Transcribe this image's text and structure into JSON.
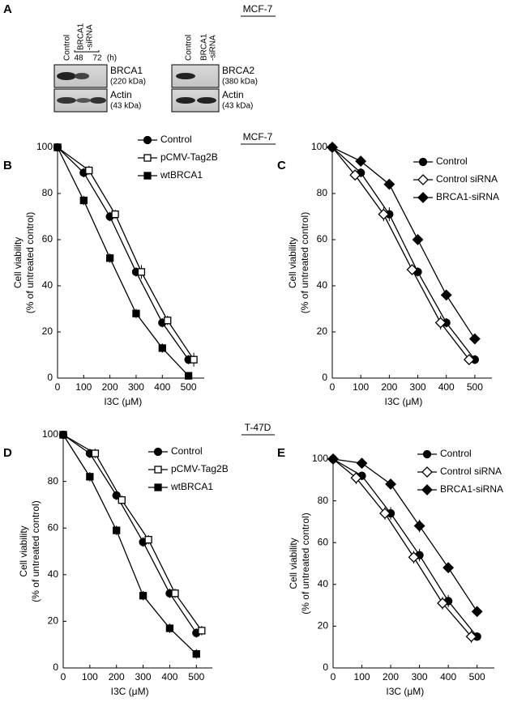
{
  "panel": "A",
  "headings": [
    "MCF-7",
    "MCF-7",
    "T-47D"
  ],
  "blots": [
    {
      "lanes": [
        "Control",
        "BRCA1",
        "-siRNA"
      ],
      "times": [
        "48",
        "72",
        "(h)"
      ],
      "rows": [
        {
          "protein": "BRCA1",
          "size": "(220 kDa)"
        },
        {
          "protein": "Actin",
          "size": "(43 kDa)"
        }
      ]
    },
    {
      "lanes": [
        "Control",
        "BRCA1",
        "-siRNA"
      ],
      "rows": [
        {
          "protein": "BRCA2",
          "size": "(380 kDa)"
        },
        {
          "protein": "Actin",
          "size": "(43 kDa)"
        }
      ]
    }
  ],
  "chart_data": [
    {
      "type": "line",
      "panel": "B",
      "xlabel": "I3C (μM)",
      "ylabel": [
        "Cell viability",
        "(% of untreated control)"
      ],
      "xlim": [
        0,
        560
      ],
      "ylim": [
        0,
        100
      ],
      "xticks": [
        0,
        100,
        200,
        300,
        400,
        500
      ],
      "yticks": [
        0,
        20,
        40,
        60,
        80,
        100
      ],
      "series": [
        {
          "name": "Control",
          "color": "#000000",
          "marker": "circle",
          "filled": true,
          "x": [
            0,
            100,
            200,
            300,
            400,
            500
          ],
          "values": [
            100,
            89,
            70,
            46,
            24,
            8
          ],
          "errors": [
            1,
            2,
            2,
            2,
            2,
            2
          ]
        },
        {
          "name": "pCMV-Tag2B",
          "color": "#000000",
          "marker": "square",
          "filled": false,
          "x": [
            0,
            120,
            220,
            320,
            420,
            520
          ],
          "values": [
            100,
            90,
            71,
            46,
            25,
            8
          ],
          "errors": [
            1,
            2,
            2,
            3,
            2,
            3
          ]
        },
        {
          "name": "wtBRCA1",
          "color": "#000000",
          "marker": "square",
          "filled": true,
          "x": [
            0,
            100,
            200,
            300,
            400,
            500
          ],
          "values": [
            100,
            77,
            52,
            28,
            13,
            1
          ],
          "errors": [
            1,
            2,
            2,
            2,
            2,
            1
          ]
        }
      ]
    },
    {
      "type": "line",
      "panel": "C",
      "xlabel": "I3C (μM)",
      "ylabel": [
        "Cell viability",
        "(% of untreated control)"
      ],
      "xlim": [
        0,
        560
      ],
      "ylim": [
        0,
        100
      ],
      "xticks": [
        0,
        100,
        200,
        300,
        400,
        500
      ],
      "yticks": [
        0,
        20,
        40,
        60,
        80,
        100
      ],
      "series": [
        {
          "name": "Control",
          "color": "#000000",
          "marker": "circle",
          "filled": true,
          "x": [
            0,
            100,
            200,
            300,
            400,
            500
          ],
          "values": [
            100,
            89,
            71,
            46,
            24,
            8
          ],
          "errors": [
            1,
            2,
            3,
            2,
            2,
            2
          ]
        },
        {
          "name": "Control siRNA",
          "color": "#000000",
          "marker": "diamond",
          "filled": false,
          "x": [
            0,
            80,
            180,
            280,
            380,
            480
          ],
          "values": [
            100,
            88,
            71,
            47,
            24,
            8
          ],
          "errors": [
            1,
            2,
            3,
            2,
            3,
            2
          ]
        },
        {
          "name": "BRCA1-siRNA",
          "color": "#000000",
          "marker": "diamond",
          "filled": true,
          "x": [
            0,
            100,
            200,
            300,
            400,
            500
          ],
          "values": [
            100,
            94,
            84,
            60,
            36,
            17
          ],
          "errors": [
            1,
            2,
            2,
            2,
            2,
            2
          ]
        }
      ]
    },
    {
      "type": "line",
      "panel": "D",
      "xlabel": "I3C (μM)",
      "ylabel": [
        "Cell viability",
        "(% of untreated control)"
      ],
      "xlim": [
        0,
        560
      ],
      "ylim": [
        0,
        100
      ],
      "xticks": [
        0,
        100,
        200,
        300,
        400,
        500
      ],
      "yticks": [
        0,
        20,
        40,
        60,
        80,
        100
      ],
      "series": [
        {
          "name": "Control",
          "color": "#000000",
          "marker": "circle",
          "filled": true,
          "x": [
            0,
            100,
            200,
            300,
            400,
            500
          ],
          "values": [
            100,
            92,
            74,
            54,
            32,
            15
          ],
          "errors": [
            1,
            2,
            2,
            2,
            2,
            2
          ]
        },
        {
          "name": "pCMV-Tag2B",
          "color": "#000000",
          "marker": "square",
          "filled": false,
          "x": [
            0,
            120,
            220,
            320,
            420,
            520
          ],
          "values": [
            100,
            92,
            72,
            55,
            32,
            16
          ],
          "errors": [
            1,
            2,
            2,
            2,
            2,
            2
          ]
        },
        {
          "name": "wtBRCA1",
          "color": "#000000",
          "marker": "square",
          "filled": true,
          "x": [
            0,
            100,
            200,
            300,
            400,
            500
          ],
          "values": [
            100,
            82,
            59,
            31,
            17,
            6
          ],
          "errors": [
            1,
            2,
            2,
            2,
            2,
            2
          ]
        }
      ]
    },
    {
      "type": "line",
      "panel": "E",
      "xlabel": "I3C (μM)",
      "ylabel": [
        "Cell viability",
        "(% of untreated control)"
      ],
      "xlim": [
        0,
        560
      ],
      "ylim": [
        0,
        100
      ],
      "xticks": [
        0,
        100,
        200,
        300,
        400,
        500
      ],
      "yticks": [
        0,
        20,
        40,
        60,
        80,
        100
      ],
      "series": [
        {
          "name": "Control",
          "color": "#000000",
          "marker": "circle",
          "filled": true,
          "x": [
            0,
            100,
            200,
            300,
            400,
            500
          ],
          "values": [
            100,
            92,
            74,
            54,
            32,
            15
          ],
          "errors": [
            1,
            2,
            3,
            3,
            3,
            2
          ]
        },
        {
          "name": "Control siRNA",
          "color": "#000000",
          "marker": "diamond",
          "filled": false,
          "x": [
            0,
            80,
            180,
            280,
            380,
            480
          ],
          "values": [
            100,
            91,
            74,
            53,
            31,
            15
          ],
          "errors": [
            1,
            3,
            3,
            3,
            3,
            3
          ]
        },
        {
          "name": "BRCA1-siRNA",
          "color": "#000000",
          "marker": "diamond",
          "filled": true,
          "x": [
            0,
            100,
            200,
            300,
            400,
            500
          ],
          "values": [
            100,
            98,
            88,
            68,
            48,
            27
          ],
          "errors": [
            1,
            2,
            2,
            3,
            2,
            2
          ]
        }
      ]
    }
  ]
}
